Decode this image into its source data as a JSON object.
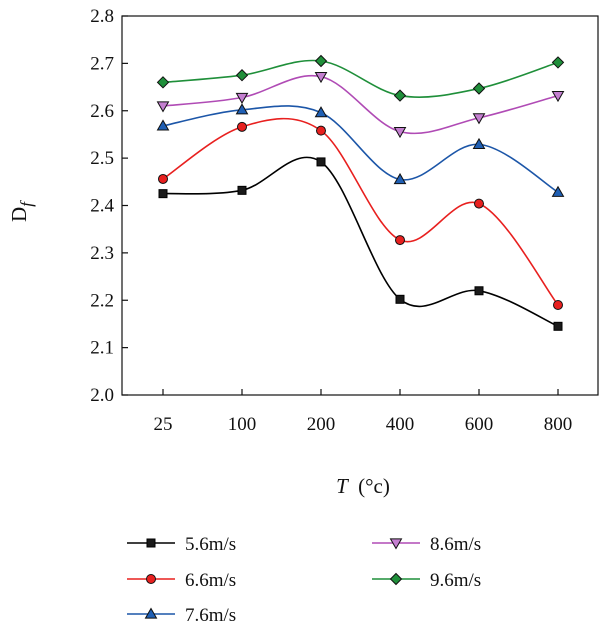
{
  "chart_data": {
    "type": "line",
    "title": "",
    "xlabel_main": "T",
    "xlabel_unit": "(°c)",
    "ylabel_main": "D",
    "ylabel_sub": "f",
    "categories": [
      "25",
      "100",
      "200",
      "400",
      "600",
      "800"
    ],
    "ylim": [
      2.0,
      2.8
    ],
    "yticks": [
      "2.0",
      "2.1",
      "2.2",
      "2.3",
      "2.4",
      "2.5",
      "2.6",
      "2.7",
      "2.8"
    ],
    "grid": false,
    "legend_position": "bottom",
    "series": [
      {
        "name": "5.6m/s",
        "marker": "square",
        "color": "#000000",
        "marker_fill": "#1a1a1a",
        "values": [
          2.425,
          2.432,
          2.492,
          2.202,
          2.22,
          2.145
        ]
      },
      {
        "name": "6.6m/s",
        "marker": "circle",
        "color": "#e8201f",
        "marker_fill": "#e8201f",
        "values": [
          2.456,
          2.566,
          2.558,
          2.327,
          2.404,
          2.19
        ]
      },
      {
        "name": "7.6m/s",
        "marker": "triangle-up",
        "color": "#1c56a8",
        "marker_fill": "#1f5fb4",
        "values": [
          2.568,
          2.602,
          2.596,
          2.455,
          2.529,
          2.428
        ]
      },
      {
        "name": "8.6m/s",
        "marker": "triangle-down",
        "color": "#b04bb5",
        "marker_fill": "#c47fd0",
        "values": [
          2.61,
          2.628,
          2.672,
          2.556,
          2.585,
          2.632
        ]
      },
      {
        "name": "9.6m/s",
        "marker": "diamond",
        "color": "#1f8f3a",
        "marker_fill": "#1f8f3a",
        "values": [
          2.66,
          2.675,
          2.705,
          2.632,
          2.647,
          2.702
        ]
      }
    ]
  }
}
